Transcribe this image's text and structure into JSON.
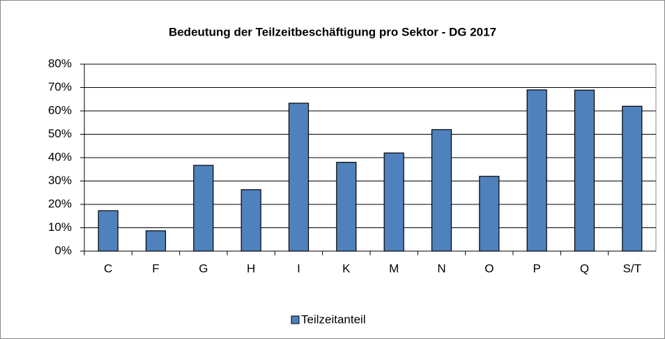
{
  "chart_data": {
    "type": "bar",
    "title": "Bedeutung der Teilzeitbeschäftigung pro Sektor - DG 2017",
    "categories": [
      "C",
      "F",
      "G",
      "H",
      "I",
      "K",
      "M",
      "N",
      "O",
      "P",
      "Q",
      "S/T"
    ],
    "series": [
      {
        "name": "Teilzeitanteil",
        "color": "#4f81bd",
        "values": [
          17.3,
          8.7,
          36.7,
          26.3,
          63.3,
          38,
          42,
          52,
          32,
          69,
          68.9,
          62
        ]
      }
    ],
    "ylim": [
      0,
      80
    ],
    "yticks": [
      {
        "value": 0,
        "label": "0%"
      },
      {
        "value": 10,
        "label": "10%"
      },
      {
        "value": 20,
        "label": "20%"
      },
      {
        "value": 30,
        "label": "30%"
      },
      {
        "value": 40,
        "label": "40%"
      },
      {
        "value": 50,
        "label": "50%"
      },
      {
        "value": 60,
        "label": "60%"
      },
      {
        "value": 70,
        "label": "70%"
      },
      {
        "value": 80,
        "label": "80%"
      }
    ],
    "grid": true,
    "legend": "bottom"
  }
}
